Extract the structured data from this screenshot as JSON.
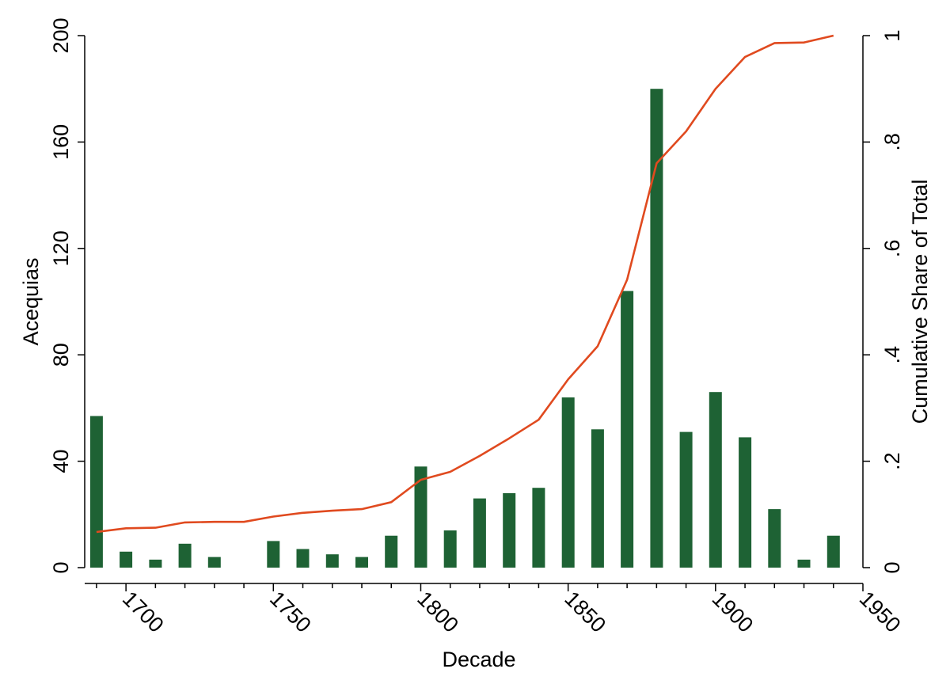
{
  "chart_data": {
    "type": "bar",
    "xlabel": "Decade",
    "ylabel": "Acequias",
    "ylabel_right": "Cumulative Share of Total",
    "ylim": [
      0,
      200
    ],
    "ylim_right": [
      0,
      1
    ],
    "yticks": [
      "0",
      "40",
      "80",
      "120",
      "160",
      "200"
    ],
    "yticks_right": [
      "0",
      ".2",
      ".4",
      ".6",
      ".8",
      "1"
    ],
    "xticks": [
      "1700",
      "1750",
      "1800",
      "1850",
      "1900",
      "1950"
    ],
    "xlim": [
      1686,
      1950
    ],
    "grid": false,
    "colors": {
      "bar": "#1e6234",
      "line": "#e04a1f"
    },
    "series": [
      {
        "type": "bar",
        "axis": "left",
        "x": [
          1690,
          1700,
          1710,
          1720,
          1730,
          1740,
          1750,
          1760,
          1770,
          1780,
          1790,
          1800,
          1810,
          1820,
          1830,
          1840,
          1850,
          1860,
          1870,
          1880,
          1890,
          1900,
          1910,
          1920,
          1930,
          1940
        ],
        "values": [
          57,
          6,
          3,
          9,
          4,
          0,
          10,
          7,
          5,
          4,
          12,
          38,
          14,
          26,
          28,
          30,
          64,
          52,
          104,
          180,
          51,
          66,
          49,
          22,
          3,
          12
        ]
      },
      {
        "type": "line",
        "axis": "right",
        "x": [
          1690,
          1700,
          1710,
          1720,
          1730,
          1740,
          1750,
          1760,
          1770,
          1780,
          1790,
          1800,
          1810,
          1820,
          1830,
          1840,
          1850,
          1860,
          1870,
          1880,
          1890,
          1900,
          1910,
          1920,
          1930,
          1940
        ],
        "values": [
          0.067,
          0.074,
          0.075,
          0.085,
          0.086,
          0.086,
          0.096,
          0.103,
          0.107,
          0.11,
          0.123,
          0.165,
          0.18,
          0.21,
          0.243,
          0.278,
          0.354,
          0.416,
          0.541,
          0.76,
          0.82,
          0.9,
          0.96,
          0.986,
          0.987,
          1.0
        ]
      }
    ]
  }
}
